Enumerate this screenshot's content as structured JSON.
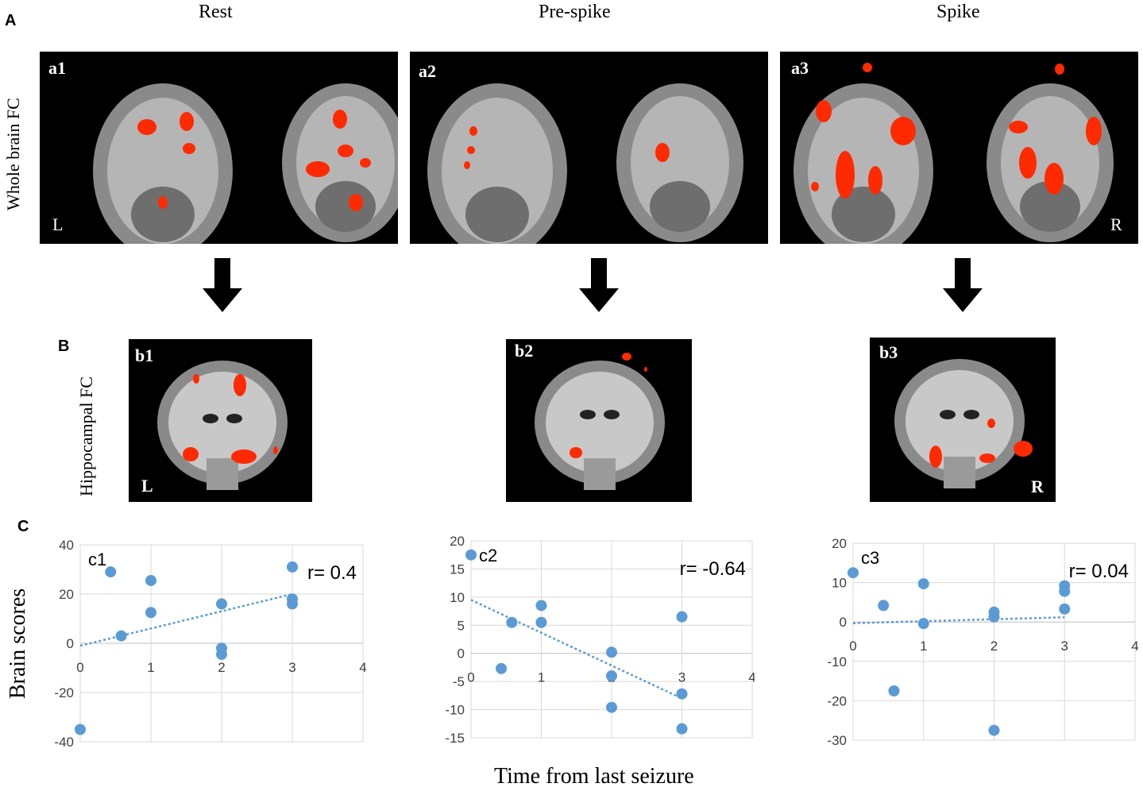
{
  "figure": {
    "panel_letters": {
      "a": "A",
      "b": "B",
      "c": "C"
    },
    "column_titles": [
      "Rest",
      "Pre-spike",
      "Spike"
    ],
    "row_labels": {
      "whole_brain": "Whole brain FC",
      "hippocampal": "Hippocampal FC"
    },
    "panel_a": [
      {
        "tag": "a1",
        "left_side": "L",
        "right_side": ""
      },
      {
        "tag": "a2",
        "left_side": "",
        "right_side": ""
      },
      {
        "tag": "a3",
        "left_side": "",
        "right_side": "R"
      }
    ],
    "panel_b": [
      {
        "tag": "b1",
        "left_side": "L",
        "right_side": ""
      },
      {
        "tag": "b2",
        "left_side": "",
        "right_side": ""
      },
      {
        "tag": "b3",
        "left_side": "",
        "right_side": "R"
      }
    ],
    "y_axis_label": "Brain scores",
    "x_axis_label": "Time from last seizure",
    "colors": {
      "activation": "#ff2a00",
      "points": "#5b9bd5",
      "trend": "#5b9bd5",
      "grid": "#d9d9d9",
      "brain_bg": "#000000",
      "arrow": "#000000"
    }
  },
  "chart_data": [
    {
      "type": "scatter",
      "tag": "c1",
      "r_label": "r= 0.4",
      "xlim": [
        0,
        4
      ],
      "ylim": [
        -40,
        40
      ],
      "x_ticks": [
        "0",
        "1",
        "2",
        "3",
        "4"
      ],
      "y_ticks": [
        "40",
        "20",
        "0",
        "-20",
        "-40"
      ],
      "grid": true,
      "trendline": {
        "from": [
          0,
          -1
        ],
        "to": [
          3,
          20
        ]
      },
      "points": [
        [
          0,
          -35
        ],
        [
          0.43,
          29
        ],
        [
          0.58,
          3
        ],
        [
          1,
          25.5
        ],
        [
          1,
          12.5
        ],
        [
          2,
          16
        ],
        [
          2,
          -2
        ],
        [
          2,
          -4.5
        ],
        [
          3,
          31
        ],
        [
          3,
          18
        ],
        [
          3,
          16
        ]
      ]
    },
    {
      "type": "scatter",
      "tag": "c2",
      "r_label": "r= -0.64",
      "xlim": [
        0,
        4
      ],
      "ylim": [
        -15,
        20
      ],
      "x_ticks": [
        "0",
        "1",
        "2",
        "3",
        "4"
      ],
      "y_ticks": [
        "20",
        "15",
        "10",
        "5",
        "0",
        "-5",
        "-10",
        "-15"
      ],
      "grid": true,
      "trendline": {
        "from": [
          0,
          9.5
        ],
        "to": [
          3,
          -8
        ]
      },
      "points": [
        [
          0,
          17.5
        ],
        [
          0.43,
          -2.7
        ],
        [
          0.58,
          5.5
        ],
        [
          1,
          8.5
        ],
        [
          1,
          5.5
        ],
        [
          2,
          0.2
        ],
        [
          2,
          -4
        ],
        [
          2,
          -9.6
        ],
        [
          3,
          6.5
        ],
        [
          3,
          -7.2
        ],
        [
          3,
          -13.4
        ]
      ]
    },
    {
      "type": "scatter",
      "tag": "c3",
      "r_label": "r= 0.04",
      "xlim": [
        0,
        4
      ],
      "ylim": [
        -30,
        20
      ],
      "x_ticks": [
        "0",
        "1",
        "2",
        "3",
        "4"
      ],
      "y_ticks": [
        "20",
        "10",
        "0",
        "-10",
        "-20",
        "-30"
      ],
      "grid": true,
      "trendline": {
        "from": [
          0,
          -0.3
        ],
        "to": [
          3,
          1.2
        ]
      },
      "points": [
        [
          0,
          12.5
        ],
        [
          0.43,
          4.2
        ],
        [
          0.58,
          -17.5
        ],
        [
          1,
          9.7
        ],
        [
          1,
          -0.4
        ],
        [
          2,
          2.5
        ],
        [
          2,
          1.3
        ],
        [
          2,
          -27.5
        ],
        [
          3,
          9.2
        ],
        [
          3,
          7.8
        ],
        [
          3,
          3.3
        ]
      ]
    }
  ]
}
